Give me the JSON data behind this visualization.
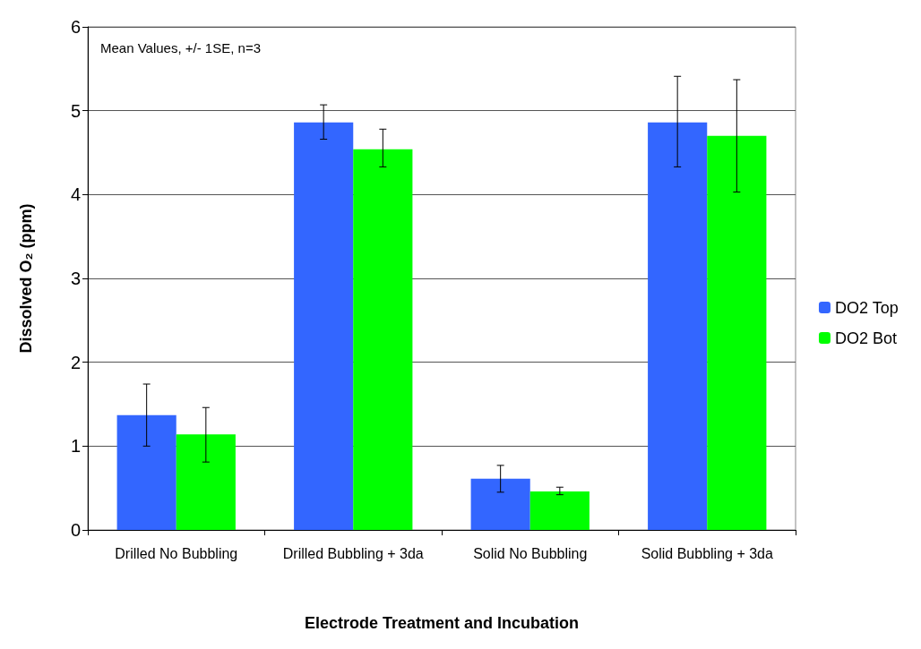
{
  "chart_data": {
    "type": "bar",
    "xlabel": "Electrode Treatment and Incubation",
    "ylabel": "Dissolved O₂ (ppm)",
    "categories": [
      "Drilled No Bubbling",
      "Drilled Bubbling + 3da",
      "Solid No Bubbling",
      "Solid Bubbling + 3da"
    ],
    "series": [
      {
        "name": "DO2 Top",
        "color": "#3366ff",
        "values": [
          1.37,
          4.86,
          0.61,
          4.86
        ],
        "errors": [
          [
            1.0,
            1.74
          ],
          [
            4.66,
            5.07
          ],
          [
            0.45,
            0.77
          ],
          [
            4.33,
            5.41
          ]
        ]
      },
      {
        "name": "DO2 Bot",
        "color": "#00ff00",
        "values": [
          1.14,
          4.54,
          0.46,
          4.7
        ],
        "errors": [
          [
            0.81,
            1.46
          ],
          [
            4.33,
            4.78
          ],
          [
            0.42,
            0.51
          ],
          [
            4.03,
            5.37
          ]
        ]
      }
    ],
    "ylim": [
      0,
      6
    ],
    "yticks": [
      0,
      1,
      2,
      3,
      4,
      5,
      6
    ],
    "grid": "y",
    "legend": "right",
    "annotations": [
      "Mean Values, +/- 1SE, n=3"
    ]
  }
}
